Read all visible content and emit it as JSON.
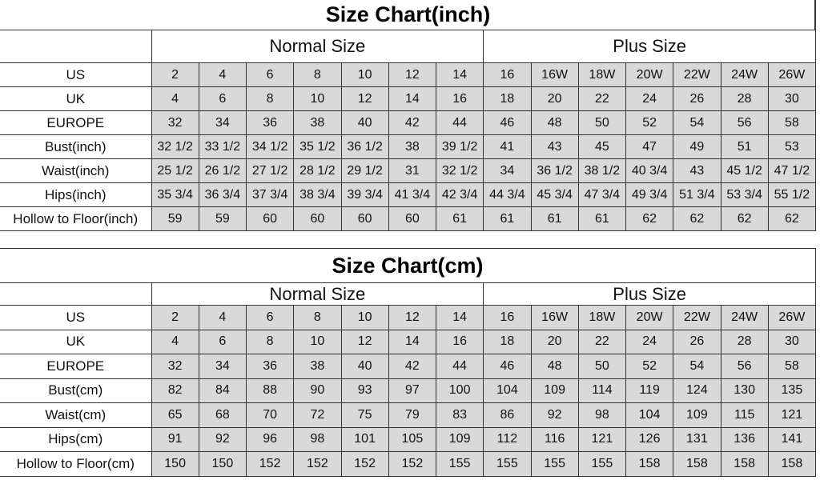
{
  "inch_chart": {
    "title": "Size Chart(inch)",
    "groups": {
      "normal": "Normal Size",
      "plus": "Plus Size"
    },
    "rows": [
      {
        "label": "US",
        "values": [
          "2",
          "4",
          "6",
          "8",
          "10",
          "12",
          "14",
          "16",
          "16W",
          "18W",
          "20W",
          "22W",
          "24W",
          "26W"
        ]
      },
      {
        "label": "UK",
        "values": [
          "4",
          "6",
          "8",
          "10",
          "12",
          "14",
          "16",
          "18",
          "20",
          "22",
          "24",
          "26",
          "28",
          "30"
        ]
      },
      {
        "label": "EUROPE",
        "values": [
          "32",
          "34",
          "36",
          "38",
          "40",
          "42",
          "44",
          "46",
          "48",
          "50",
          "52",
          "54",
          "56",
          "58"
        ]
      },
      {
        "label": "Bust(inch)",
        "values": [
          "32 1/2",
          "33 1/2",
          "34 1/2",
          "35 1/2",
          "36 1/2",
          "38",
          "39 1/2",
          "41",
          "43",
          "45",
          "47",
          "49",
          "51",
          "53"
        ]
      },
      {
        "label": "Waist(inch)",
        "values": [
          "25 1/2",
          "26 1/2",
          "27 1/2",
          "28 1/2",
          "29 1/2",
          "31",
          "32 1/2",
          "34",
          "36 1/2",
          "38 1/2",
          "40 3/4",
          "43",
          "45 1/2",
          "47 1/2"
        ]
      },
      {
        "label": "Hips(inch)",
        "values": [
          "35 3/4",
          "36 3/4",
          "37 3/4",
          "38 3/4",
          "39 3/4",
          "41 3/4",
          "42 3/4",
          "44 3/4",
          "45 3/4",
          "47 3/4",
          "49 3/4",
          "51 3/4",
          "53 3/4",
          "55 1/2"
        ]
      },
      {
        "label": "Hollow to Floor(inch)",
        "values": [
          "59",
          "59",
          "60",
          "60",
          "60",
          "60",
          "61",
          "61",
          "61",
          "61",
          "62",
          "62",
          "62",
          "62"
        ]
      }
    ]
  },
  "cm_chart": {
    "title": "Size Chart(cm)",
    "groups": {
      "normal": "Normal Size",
      "plus": "Plus Size"
    },
    "rows": [
      {
        "label": "US",
        "values": [
          "2",
          "4",
          "6",
          "8",
          "10",
          "12",
          "14",
          "16",
          "16W",
          "18W",
          "20W",
          "22W",
          "24W",
          "26W"
        ]
      },
      {
        "label": "UK",
        "values": [
          "4",
          "6",
          "8",
          "10",
          "12",
          "14",
          "16",
          "18",
          "20",
          "22",
          "24",
          "26",
          "28",
          "30"
        ]
      },
      {
        "label": "EUROPE",
        "values": [
          "32",
          "34",
          "36",
          "38",
          "40",
          "42",
          "44",
          "46",
          "48",
          "50",
          "52",
          "54",
          "56",
          "58"
        ]
      },
      {
        "label": "Bust(cm)",
        "values": [
          "82",
          "84",
          "88",
          "90",
          "93",
          "97",
          "100",
          "104",
          "109",
          "114",
          "119",
          "124",
          "130",
          "135"
        ]
      },
      {
        "label": "Waist(cm)",
        "values": [
          "65",
          "68",
          "70",
          "72",
          "75",
          "79",
          "83",
          "86",
          "92",
          "98",
          "104",
          "109",
          "115",
          "121"
        ]
      },
      {
        "label": "Hips(cm)",
        "values": [
          "91",
          "92",
          "96",
          "98",
          "101",
          "105",
          "109",
          "112",
          "116",
          "121",
          "126",
          "131",
          "136",
          "141"
        ]
      },
      {
        "label": "Hollow to Floor(cm)",
        "values": [
          "150",
          "150",
          "152",
          "152",
          "152",
          "152",
          "155",
          "155",
          "155",
          "155",
          "158",
          "158",
          "158",
          "158"
        ]
      }
    ]
  },
  "colors": {
    "cell_fill": "#d9d9d9",
    "border": "#333333"
  }
}
